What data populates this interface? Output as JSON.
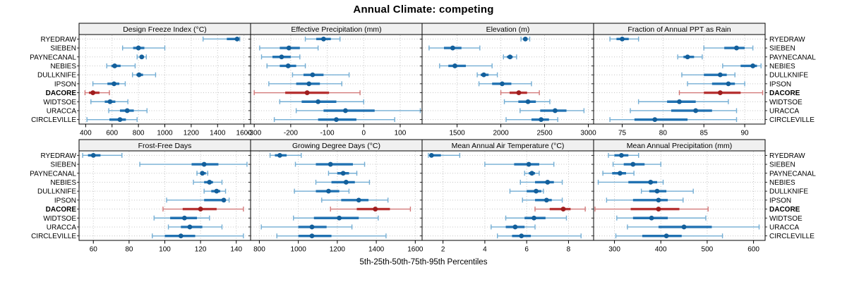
{
  "title": "Annual Climate: competing",
  "caption": "5th-25th-50th-75th-95th Percentiles",
  "stations": [
    "RYEDRAW",
    "SIEBEN",
    "PAYNECANAL",
    "NEBIES",
    "DULLKNIFE",
    "IPSON",
    "DACORE",
    "WIDTSOE",
    "URACCA",
    "CIRCLEVILLE"
  ],
  "highlight_station": "DACORE",
  "colors": {
    "blue_whisker": "#74aed4",
    "blue_box": "#2172b2",
    "blue_dot": "#135f9b",
    "red_whisker": "#d27979",
    "red_box": "#b73333",
    "red_dot": "#9f1d1d",
    "strip_bg": "#f0f0f0",
    "panel_border": "#000000",
    "grid": "#c4c4c4"
  },
  "chart_data": {
    "type": "dotplot-trellis",
    "layout": "2 rows x 4 cols, shared station y-axis, labels on left and right, x-axis below each panel row",
    "percentiles": [
      5,
      25,
      50,
      75,
      95
    ],
    "station_order_top_to_bottom": [
      "RYEDRAW",
      "SIEBEN",
      "PAYNECANAL",
      "NEBIES",
      "DULLKNIFE",
      "IPSON",
      "DACORE",
      "WIDTSOE",
      "URACCA",
      "CIRCLEVILLE"
    ],
    "panels": [
      {
        "title": "Design Freeze Index (°C)",
        "row": 0,
        "col": 0,
        "xlim": [
          350,
          1650
        ],
        "ticks": [
          400,
          600,
          800,
          1000,
          1200,
          1400,
          1600
        ],
        "values": [
          [
            1290,
            1470,
            1548,
            1558,
            1568
          ],
          [
            680,
            760,
            800,
            845,
            1000
          ],
          [
            790,
            810,
            825,
            840,
            860
          ],
          [
            560,
            595,
            620,
            665,
            775
          ],
          [
            755,
            785,
            805,
            835,
            930
          ],
          [
            455,
            565,
            615,
            655,
            700
          ],
          [
            395,
            425,
            455,
            505,
            580
          ],
          [
            440,
            545,
            585,
            625,
            720
          ],
          [
            575,
            660,
            715,
            765,
            865
          ],
          [
            410,
            580,
            660,
            705,
            790
          ]
        ]
      },
      {
        "title": "Effective Precipitation (mm)",
        "row": 0,
        "col": 1,
        "xlim": [
          -310,
          160
        ],
        "ticks": [
          -300,
          -200,
          -100,
          0,
          100
        ],
        "values": [
          [
            -160,
            -130,
            -110,
            -90,
            -65
          ],
          [
            -285,
            -230,
            -205,
            -175,
            -125
          ],
          [
            -280,
            -250,
            -225,
            -200,
            -175
          ],
          [
            -265,
            -230,
            -207,
            -185,
            -160
          ],
          [
            -195,
            -165,
            -140,
            -110,
            -40
          ],
          [
            -260,
            -185,
            -150,
            -120,
            -60
          ],
          [
            -300,
            -215,
            -155,
            -95,
            -10
          ],
          [
            -230,
            -170,
            -125,
            -75,
            0
          ],
          [
            -185,
            -110,
            -50,
            30,
            155
          ],
          [
            -245,
            -125,
            -75,
            -20,
            85
          ]
        ]
      },
      {
        "title": "Elevation (m)",
        "row": 0,
        "col": 2,
        "xlim": [
          1100,
          3060
        ],
        "ticks": [
          1500,
          2000,
          2500,
          3000
        ],
        "values": [
          [
            2230,
            2255,
            2280,
            2305,
            2330
          ],
          [
            1180,
            1350,
            1450,
            1550,
            1760
          ],
          [
            2030,
            2070,
            2105,
            2135,
            2180
          ],
          [
            1300,
            1400,
            1475,
            1600,
            1900
          ],
          [
            1730,
            1770,
            1805,
            1860,
            1960
          ],
          [
            1750,
            1900,
            2015,
            2120,
            2350
          ],
          [
            2000,
            2100,
            2205,
            2300,
            2440
          ],
          [
            2040,
            2200,
            2310,
            2400,
            2560
          ],
          [
            2220,
            2450,
            2620,
            2750,
            2950
          ],
          [
            2060,
            2350,
            2460,
            2550,
            2650
          ]
        ]
      },
      {
        "title": "Fraction of Annual PPT as Rain",
        "row": 0,
        "col": 3,
        "xlim": [
          71.5,
          92.5
        ],
        "ticks": [
          75,
          80,
          85,
          90
        ],
        "values": [
          [
            73.5,
            74.3,
            75.0,
            75.8,
            77.0
          ],
          [
            85.0,
            87.5,
            89.0,
            90.0,
            91.0
          ],
          [
            81.8,
            82.5,
            83.0,
            83.8,
            84.8
          ],
          [
            87.3,
            89.5,
            91.0,
            91.5,
            92.0
          ],
          [
            82.3,
            85.0,
            87.0,
            87.8,
            88.8
          ],
          [
            83.0,
            86.0,
            88.0,
            88.8,
            90.0
          ],
          [
            82.0,
            85.0,
            87.0,
            89.5,
            92.2
          ],
          [
            77.0,
            80.5,
            82.0,
            84.0,
            88.0
          ],
          [
            76.0,
            81.0,
            84.0,
            86.0,
            89.0
          ],
          [
            73.5,
            76.5,
            79.0,
            83.0,
            89.0
          ]
        ]
      },
      {
        "title": "Frost-Free Days",
        "row": 1,
        "col": 0,
        "xlim": [
          52,
          148
        ],
        "ticks": [
          60,
          80,
          100,
          120,
          140
        ],
        "values": [
          [
            54,
            57,
            60,
            64,
            76
          ],
          [
            86,
            115,
            122,
            130,
            146
          ],
          [
            118,
            120,
            121,
            123,
            124
          ],
          [
            116,
            122,
            125,
            127,
            132
          ],
          [
            122,
            126,
            129,
            131,
            134
          ],
          [
            101,
            122,
            133,
            134,
            136
          ],
          [
            99,
            110,
            120,
            129,
            144
          ],
          [
            94,
            103,
            111,
            118,
            125
          ],
          [
            102,
            109,
            114,
            121,
            132
          ],
          [
            93,
            100,
            109,
            117,
            144
          ]
        ]
      },
      {
        "title": "Growing Degree Days (°C)",
        "row": 1,
        "col": 1,
        "xlim": [
          755,
          1635
        ],
        "ticks": [
          800,
          1000,
          1200,
          1400,
          1600
        ],
        "values": [
          [
            855,
            880,
            905,
            940,
            1015
          ],
          [
            985,
            1090,
            1165,
            1280,
            1340
          ],
          [
            1155,
            1200,
            1230,
            1260,
            1300
          ],
          [
            1090,
            1170,
            1245,
            1290,
            1365
          ],
          [
            980,
            1090,
            1155,
            1210,
            1260
          ],
          [
            1120,
            1220,
            1310,
            1360,
            1460
          ],
          [
            1165,
            1300,
            1395,
            1470,
            1575
          ],
          [
            975,
            1080,
            1210,
            1310,
            1410
          ],
          [
            810,
            1000,
            1070,
            1145,
            1275
          ],
          [
            890,
            1000,
            1070,
            1170,
            1450
          ]
        ]
      },
      {
        "title": "Mean Annual Air Temperature (°C)",
        "row": 1,
        "col": 2,
        "xlim": [
          1.0,
          9.2
        ],
        "ticks": [
          2,
          4,
          6,
          8
        ],
        "values": [
          [
            1.3,
            1.35,
            1.45,
            1.9,
            2.8
          ],
          [
            4.0,
            5.4,
            6.1,
            6.6,
            7.3
          ],
          [
            5.9,
            6.1,
            6.25,
            6.4,
            6.6
          ],
          [
            5.7,
            6.4,
            7.0,
            7.3,
            7.7
          ],
          [
            5.2,
            6.0,
            6.45,
            6.7,
            6.8
          ],
          [
            5.8,
            6.4,
            6.95,
            7.2,
            7.7
          ],
          [
            6.4,
            7.1,
            7.75,
            8.1,
            8.8
          ],
          [
            5.0,
            5.9,
            6.35,
            6.9,
            7.9
          ],
          [
            4.3,
            5.0,
            5.45,
            5.9,
            6.4
          ],
          [
            4.6,
            5.3,
            5.75,
            6.2,
            8.6
          ]
        ]
      },
      {
        "title": "Mean Annual Precipitation (mm)",
        "row": 1,
        "col": 3,
        "xlim": [
          255,
          625
        ],
        "ticks": [
          300,
          400,
          500,
          600
        ],
        "values": [
          [
            287,
            300,
            315,
            330,
            352
          ],
          [
            297,
            320,
            340,
            365,
            400
          ],
          [
            275,
            295,
            312,
            325,
            342
          ],
          [
            265,
            330,
            378,
            392,
            405
          ],
          [
            358,
            375,
            392,
            412,
            470
          ],
          [
            283,
            340,
            395,
            415,
            448
          ],
          [
            258,
            335,
            395,
            440,
            502
          ],
          [
            305,
            340,
            380,
            415,
            497
          ],
          [
            328,
            395,
            450,
            510,
            612
          ],
          [
            303,
            360,
            412,
            445,
            533
          ]
        ]
      }
    ]
  }
}
